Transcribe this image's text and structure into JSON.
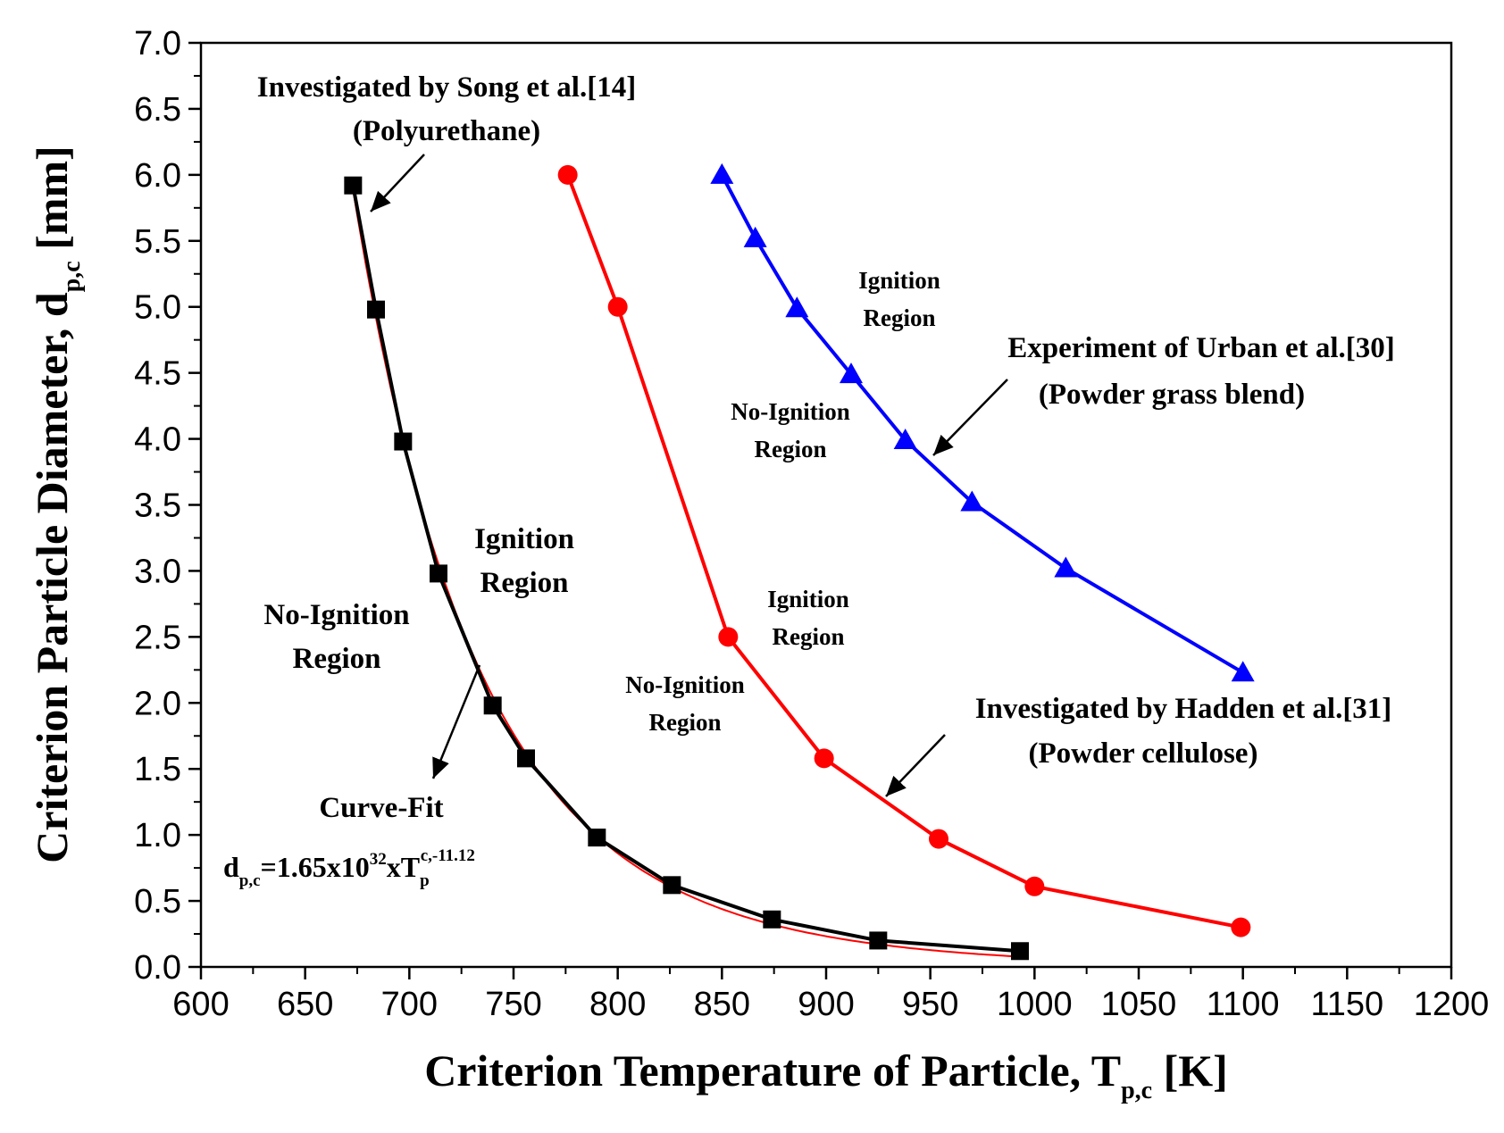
{
  "chart_data": {
    "type": "line",
    "xlabel": {
      "main": "Criterion Temperature of Particle, T",
      "sub": "p,c",
      "unit": " [K]"
    },
    "ylabel": {
      "main": "Criterion Particle Diameter, d",
      "sub": "p,c",
      "unit": " [mm]"
    },
    "xlim": [
      600,
      1200
    ],
    "ylim": [
      0.0,
      7.0
    ],
    "xticks": [
      "600",
      "650",
      "700",
      "750",
      "800",
      "850",
      "900",
      "950",
      "1000",
      "1050",
      "1100",
      "1150",
      "1200"
    ],
    "yticks": [
      "0.0",
      "0.5",
      "1.0",
      "1.5",
      "2.0",
      "2.5",
      "3.0",
      "3.5",
      "4.0",
      "4.5",
      "5.0",
      "5.5",
      "6.0",
      "6.5",
      "7.0"
    ],
    "grid": false,
    "series": [
      {
        "name": "Song et al. (Polyurethane)",
        "color": "#000000",
        "marker": "square",
        "x": [
          673,
          684,
          697,
          714,
          740,
          756,
          790,
          826,
          874,
          925,
          993
        ],
        "y": [
          5.92,
          4.98,
          3.98,
          2.98,
          1.98,
          1.58,
          0.98,
          0.62,
          0.36,
          0.2,
          0.12
        ]
      },
      {
        "name": "Hadden et al. (Powder cellulose)",
        "color": "#ff0000",
        "marker": "circle",
        "x": [
          776,
          800,
          853,
          899,
          954,
          1000,
          1099
        ],
        "y": [
          6.0,
          5.0,
          2.5,
          1.58,
          0.97,
          0.61,
          0.3
        ]
      },
      {
        "name": "Urban et al. (Powder grass blend)",
        "color": "#0000ff",
        "marker": "triangle",
        "x": [
          850,
          866,
          886,
          912,
          938,
          970,
          1015,
          1100
        ],
        "y": [
          6.0,
          5.52,
          4.99,
          4.49,
          3.99,
          3.52,
          3.02,
          2.23
        ]
      }
    ],
    "curve_fit": {
      "color": "#ff0000",
      "coef": 1.65e+32,
      "exponent": -11.12
    },
    "annotations": {
      "song_line1": "Investigated by Song et al.[14]",
      "song_line2": "(Polyurethane)",
      "ign1_line1": "Ignition",
      "ign1_line2": "Region",
      "noign1_line1": "No-Ignition",
      "noign1_line2": "Region",
      "curvefit": "Curve-Fit",
      "formula_main": "d",
      "formula_sub1": "p,c",
      "formula_mid": "=1.65x10",
      "formula_sup1": "32",
      "formula_x": "xT",
      "formula_sub2": "p",
      "formula_sup2": "c,-11.12",
      "ign2_line1": "Ignition",
      "ign2_line2": "Region",
      "noign2_line1": "No-Ignition",
      "noign2_line2": "Region",
      "hadden_line1": "Investigated by  Hadden et al.[31]",
      "hadden_line2": "(Powder cellulose)",
      "ign3_line1": "Ignition",
      "ign3_line2": "Region",
      "noign3_line1": "No-Ignition",
      "noign3_line2": "Region",
      "urban_line1": "Experiment of Urban et al.[30]",
      "urban_line2": "(Powder grass blend)"
    }
  }
}
